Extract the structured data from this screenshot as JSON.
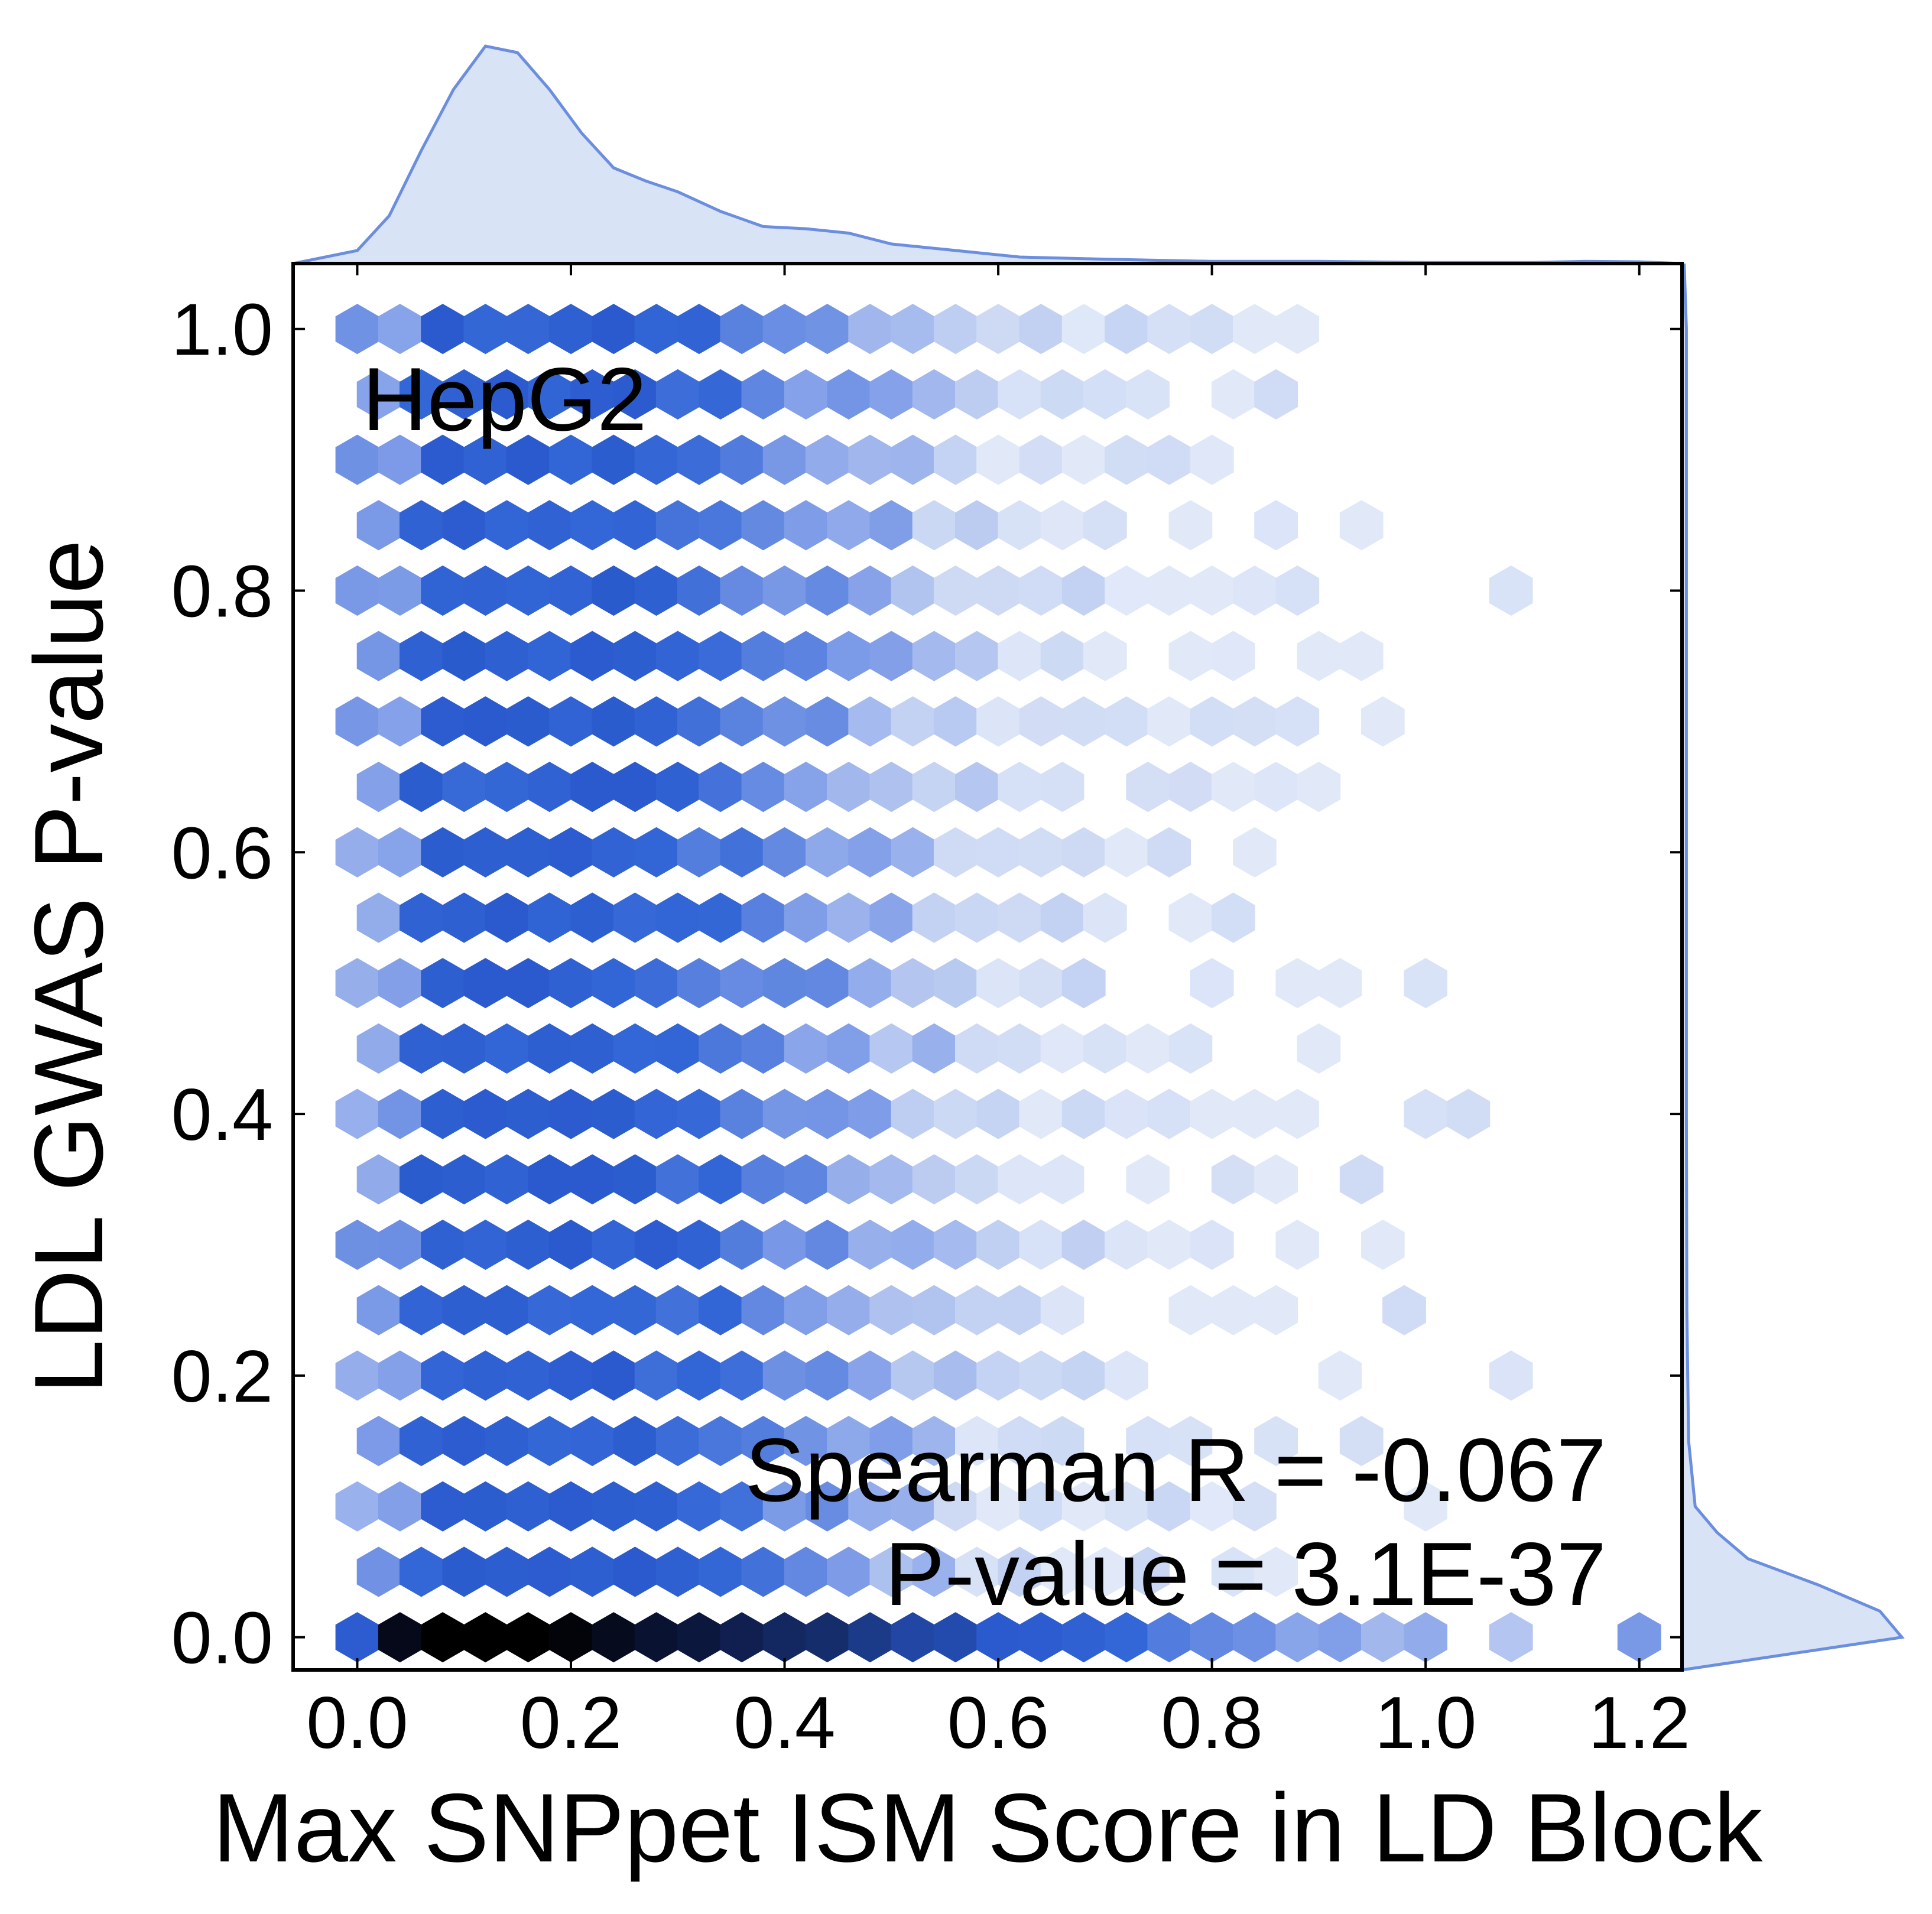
{
  "chart_data": {
    "type": "hexbin",
    "xlabel": "Max SNPpet ISM Score in LD Block",
    "ylabel": "LDL GWAS P-value",
    "xlim": [
      -0.06,
      1.24
    ],
    "ylim": [
      -0.025,
      1.05
    ],
    "xticks": [
      "0.0",
      "0.2",
      "0.4",
      "0.6",
      "0.8",
      "1.0",
      "1.2"
    ],
    "yticks": [
      "0.0",
      "0.2",
      "0.4",
      "0.6",
      "0.8",
      "1.0"
    ],
    "colors": {
      "accent": "#3366d6",
      "kde_line": "#6b8ede",
      "kde_fill": "#d9e3f6",
      "max_density": "#000000"
    },
    "annotations": {
      "cell_line": "HepG2",
      "spearman": "Spearman R = -0.067",
      "pvalue": "P-value = 3.1E-37"
    },
    "hex_grid": {
      "x_step": 0.04,
      "y_step": 0.05,
      "cols": 31,
      "rows": 21
    },
    "bottom_row_density": [
      0.6,
      0.95,
      1.0,
      1.0,
      1.0,
      0.98,
      0.94,
      0.9,
      0.88,
      0.85,
      0.82,
      0.8,
      0.75,
      0.7,
      0.68,
      0.62,
      0.6,
      0.55,
      0.5,
      0.42,
      0.38,
      0.35,
      0.28,
      0.3,
      0.22,
      0.26,
      0,
      0.18,
      0,
      0,
      0.32
    ],
    "marginal_x_density": {
      "x": [
        -0.06,
        0.0,
        0.03,
        0.06,
        0.09,
        0.12,
        0.15,
        0.18,
        0.21,
        0.24,
        0.27,
        0.3,
        0.34,
        0.38,
        0.42,
        0.46,
        0.5,
        0.56,
        0.62,
        0.7,
        0.8,
        0.9,
        1.0,
        1.1,
        1.15,
        1.2,
        1.24
      ],
      "y": [
        0.0,
        0.06,
        0.22,
        0.52,
        0.8,
        1.0,
        0.97,
        0.8,
        0.6,
        0.44,
        0.38,
        0.33,
        0.24,
        0.17,
        0.16,
        0.14,
        0.09,
        0.06,
        0.03,
        0.02,
        0.01,
        0.01,
        0.005,
        0.005,
        0.01,
        0.008,
        0.0
      ]
    },
    "marginal_y_density": {
      "y": [
        -0.025,
        0.0,
        0.02,
        0.04,
        0.06,
        0.08,
        0.1,
        0.15,
        0.25,
        0.4,
        0.6,
        0.8,
        1.0,
        1.05
      ],
      "x": [
        0.0,
        1.0,
        0.9,
        0.62,
        0.3,
        0.16,
        0.06,
        0.03,
        0.022,
        0.02,
        0.02,
        0.02,
        0.02,
        0.01
      ]
    }
  }
}
